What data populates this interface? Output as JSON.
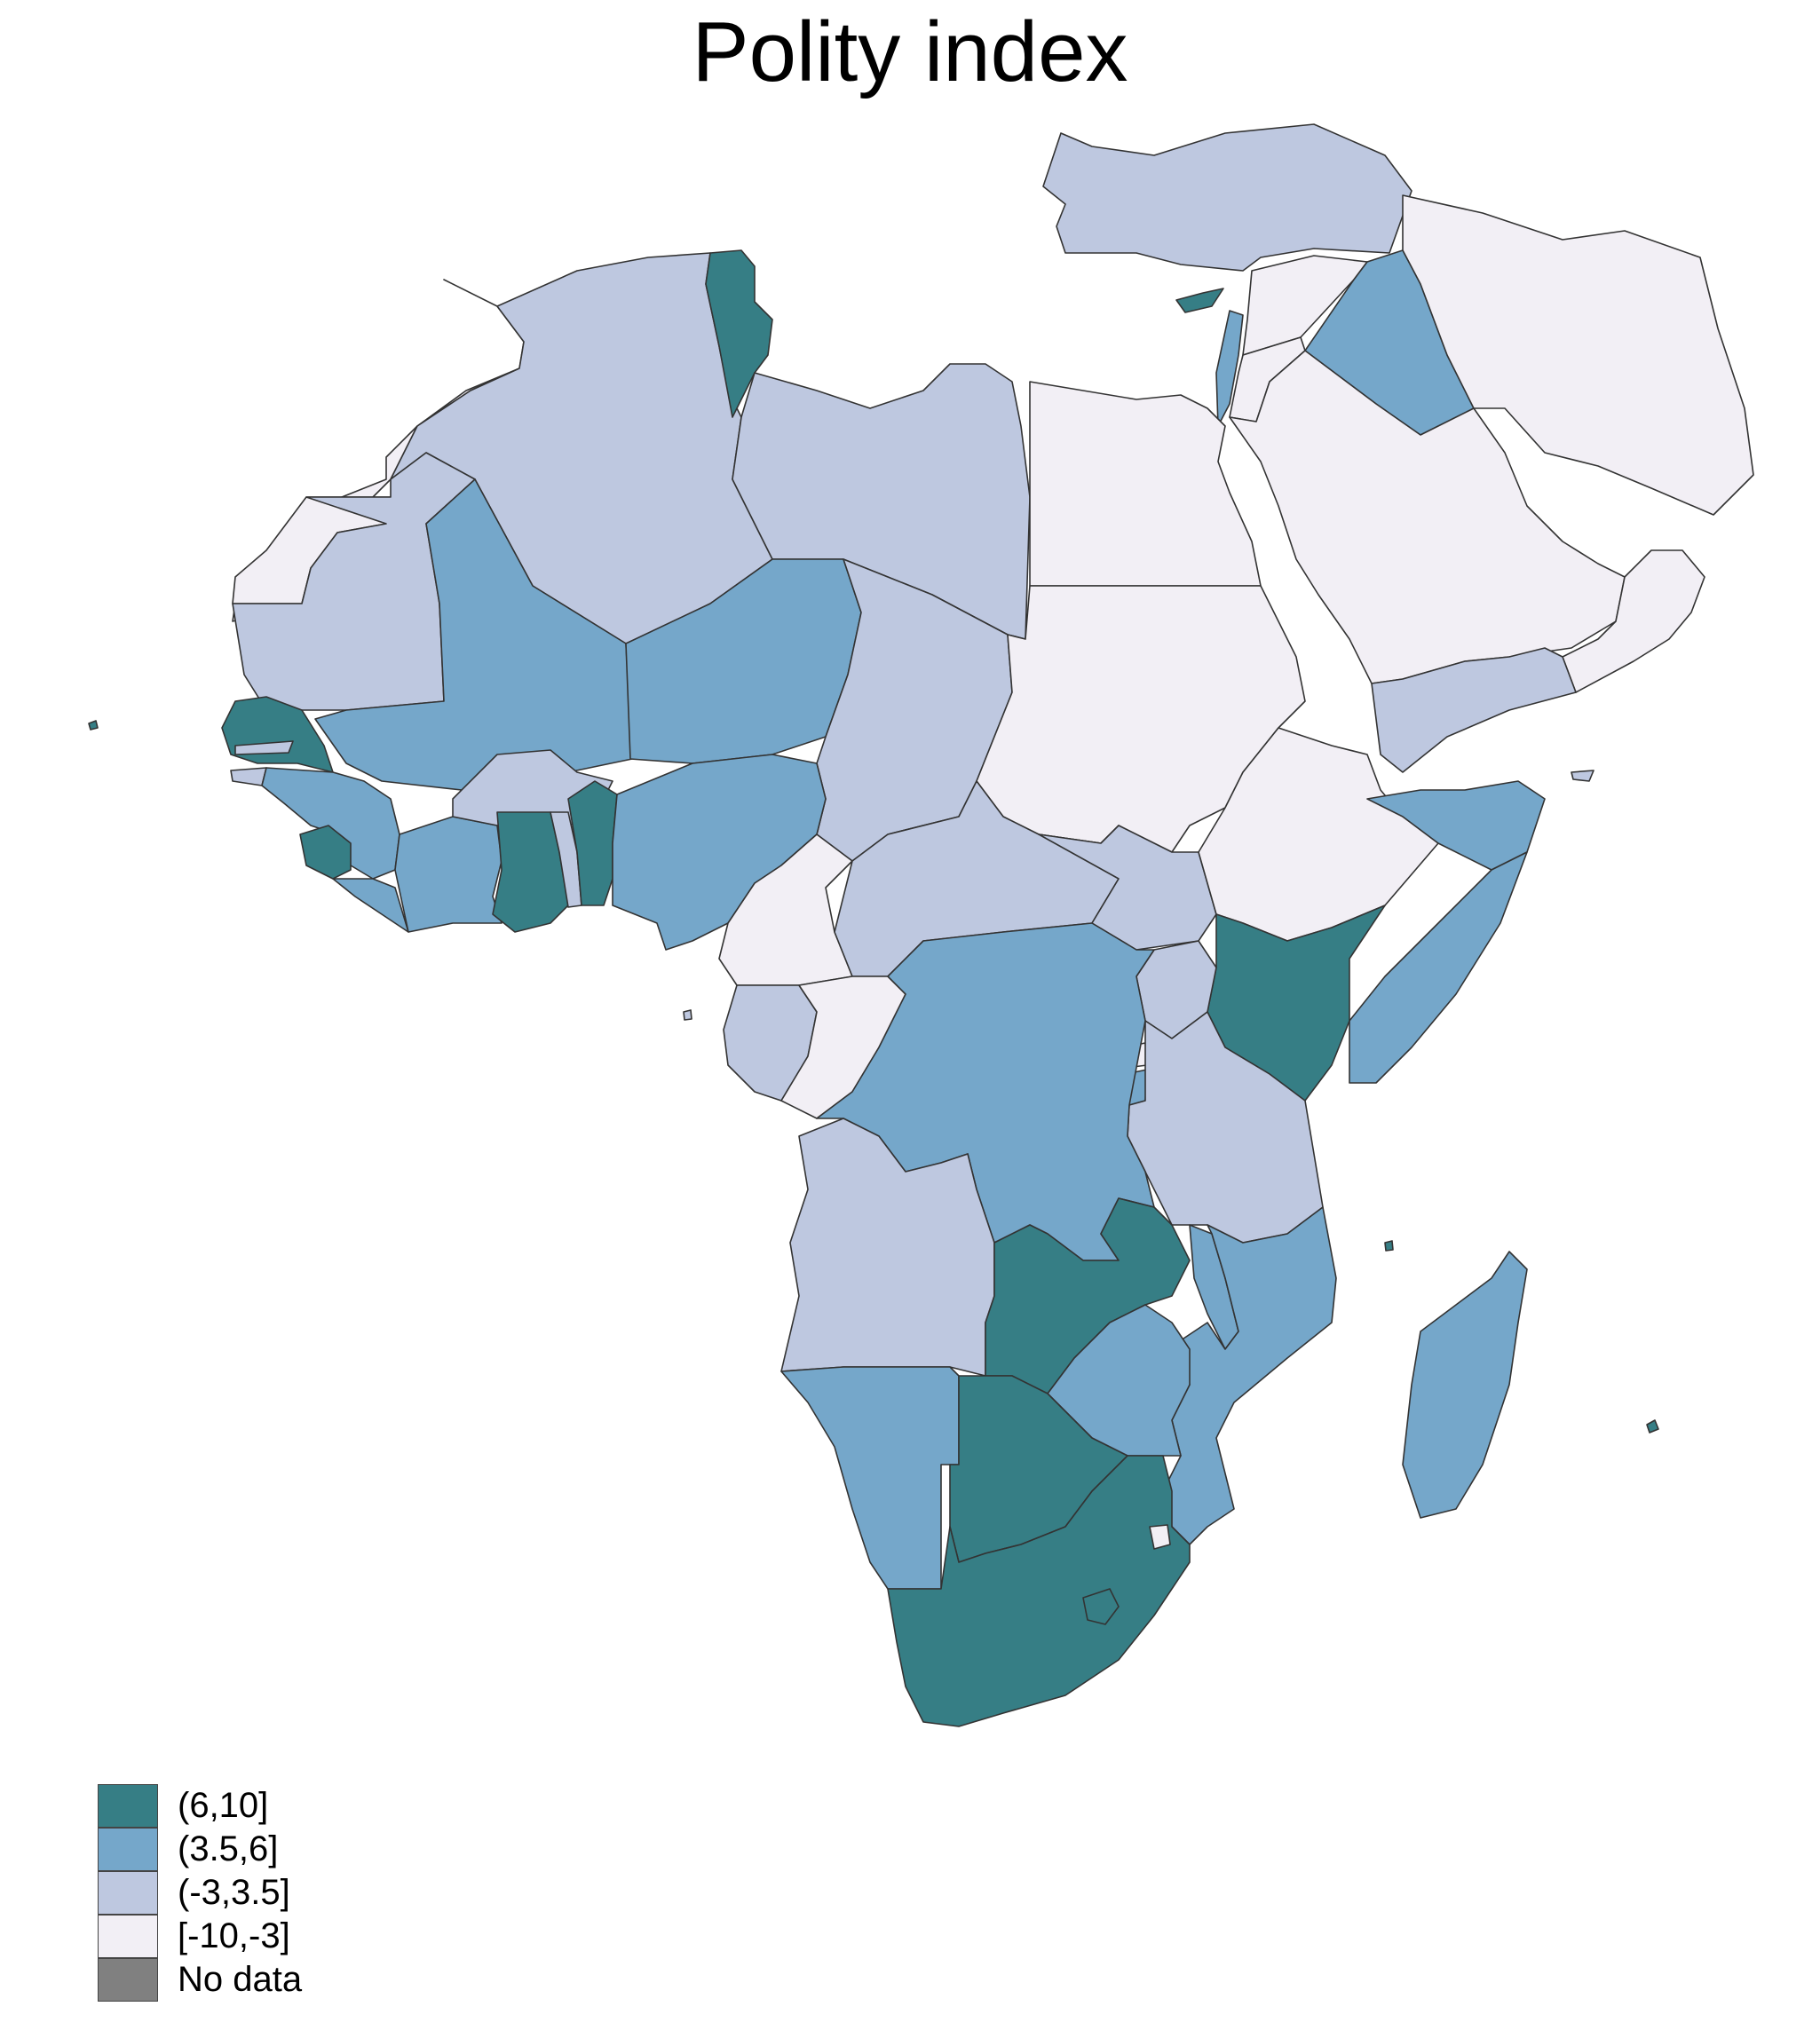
{
  "title": "Polity index",
  "colors": {
    "c1": "#367e85",
    "c2": "#75a7ca",
    "c3": "#bec8e0",
    "c4": "#f2eff5",
    "nodata": "#808080"
  },
  "legend": [
    {
      "label": "(6,10]",
      "color": "#367e85"
    },
    {
      "label": "(3.5,6]",
      "color": "#75a7ca"
    },
    {
      "label": "(-3,3.5]",
      "color": "#bec8e0"
    },
    {
      "label": "[-10,-3]",
      "color": "#f2eff5"
    },
    {
      "label": "No data",
      "color": "#808080"
    }
  ]
}
